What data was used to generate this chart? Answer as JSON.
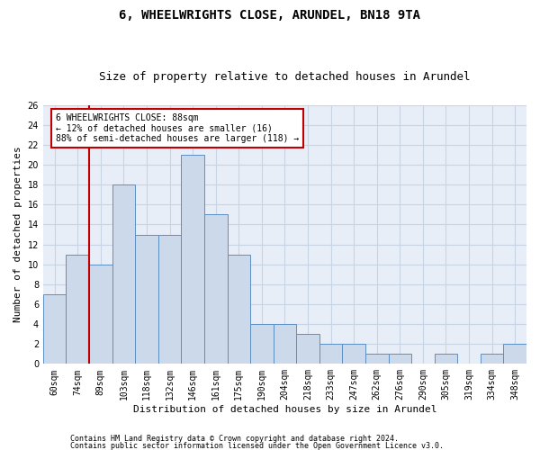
{
  "title": "6, WHEELWRIGHTS CLOSE, ARUNDEL, BN18 9TA",
  "subtitle": "Size of property relative to detached houses in Arundel",
  "xlabel": "Distribution of detached houses by size in Arundel",
  "ylabel": "Number of detached properties",
  "categories": [
    "60sqm",
    "74sqm",
    "89sqm",
    "103sqm",
    "118sqm",
    "132sqm",
    "146sqm",
    "161sqm",
    "175sqm",
    "190sqm",
    "204sqm",
    "218sqm",
    "233sqm",
    "247sqm",
    "262sqm",
    "276sqm",
    "290sqm",
    "305sqm",
    "319sqm",
    "334sqm",
    "348sqm"
  ],
  "values": [
    7,
    11,
    10,
    18,
    13,
    13,
    21,
    15,
    11,
    4,
    4,
    3,
    2,
    2,
    1,
    1,
    0,
    1,
    0,
    1,
    2
  ],
  "bar_facecolor": "#ccd9eb",
  "bar_edgecolor": "#5b8fc4",
  "ylim": [
    0,
    26
  ],
  "yticks": [
    0,
    2,
    4,
    6,
    8,
    10,
    12,
    14,
    16,
    18,
    20,
    22,
    24,
    26
  ],
  "grid_color": "#c8d4e4",
  "annotation_text": "6 WHEELWRIGHTS CLOSE: 88sqm\n← 12% of detached houses are smaller (16)\n88% of semi-detached houses are larger (118) →",
  "annotation_box_color": "#c00000",
  "ref_line_x": 1.5,
  "footer1": "Contains HM Land Registry data © Crown copyright and database right 2024.",
  "footer2": "Contains public sector information licensed under the Open Government Licence v3.0.",
  "bg_color": "#e8eef8",
  "title_fontsize": 10,
  "subtitle_fontsize": 9,
  "tick_fontsize": 7,
  "ylabel_fontsize": 8,
  "xlabel_fontsize": 8,
  "footer_fontsize": 6
}
